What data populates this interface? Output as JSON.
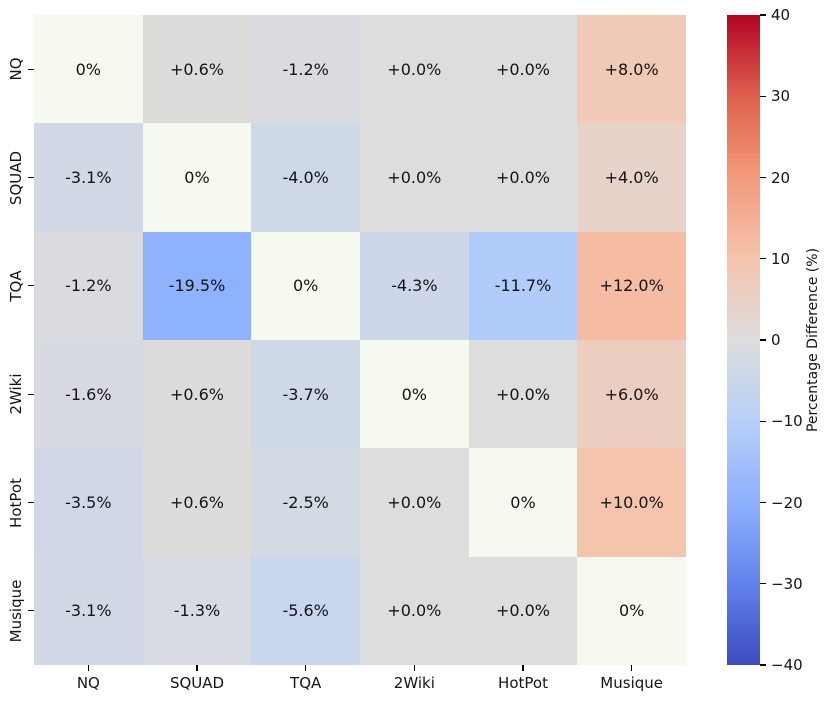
{
  "chart_data": {
    "type": "heatmap",
    "title": "",
    "x_categories": [
      "NQ",
      "SQUAD",
      "TQA",
      "2Wiki",
      "HotPot",
      "Musique"
    ],
    "y_categories": [
      "NQ",
      "SQUAD",
      "TQA",
      "2Wiki",
      "HotPot",
      "Musique"
    ],
    "cell_labels": [
      [
        "0%",
        "+0.6%",
        "-1.2%",
        "+0.0%",
        "+0.0%",
        "+8.0%"
      ],
      [
        "-3.1%",
        "0%",
        "-4.0%",
        "+0.0%",
        "+0.0%",
        "+4.0%"
      ],
      [
        "-1.2%",
        "-19.5%",
        "0%",
        "-4.3%",
        "-11.7%",
        "+12.0%"
      ],
      [
        "-1.6%",
        "+0.6%",
        "-3.7%",
        "0%",
        "+0.0%",
        "+6.0%"
      ],
      [
        "-3.5%",
        "+0.6%",
        "-2.5%",
        "+0.0%",
        "0%",
        "+10.0%"
      ],
      [
        "-3.1%",
        "-1.3%",
        "-5.6%",
        "+0.0%",
        "+0.0%",
        "0%"
      ]
    ],
    "values": [
      [
        0.0,
        0.6,
        -1.2,
        0.0,
        0.0,
        8.0
      ],
      [
        -3.1,
        0.0,
        -4.0,
        0.0,
        0.0,
        4.0
      ],
      [
        -1.2,
        -19.5,
        0.0,
        -4.3,
        -11.7,
        12.0
      ],
      [
        -1.6,
        0.6,
        -3.7,
        0.0,
        0.0,
        6.0
      ],
      [
        -3.5,
        0.6,
        -2.5,
        0.0,
        0.0,
        10.0
      ],
      [
        -3.1,
        -1.3,
        -5.6,
        0.0,
        0.0,
        0.0
      ]
    ],
    "diagonal_color": "#F5F9F0",
    "text_color": "#141414",
    "colormap": {
      "name": "coolwarm",
      "stops": [
        [
          0.0,
          "#3B4CC0"
        ],
        [
          0.125,
          "#6282EA"
        ],
        [
          0.25,
          "#8DB0FE"
        ],
        [
          0.375,
          "#B8D0F9"
        ],
        [
          0.5,
          "#DDDDDD"
        ],
        [
          0.625,
          "#F5C4AD"
        ],
        [
          0.75,
          "#F49A7B"
        ],
        [
          0.875,
          "#DE604D"
        ],
        [
          1.0,
          "#B40426"
        ]
      ]
    },
    "colorbar": {
      "label": "Percentage Difference (%)",
      "ticks": [
        "40",
        "30",
        "20",
        "10",
        "0",
        "−10",
        "−20",
        "−30",
        "−40"
      ],
      "vmin": -40,
      "vmax": 40,
      "position": "right"
    },
    "grid": false,
    "legend": null
  }
}
